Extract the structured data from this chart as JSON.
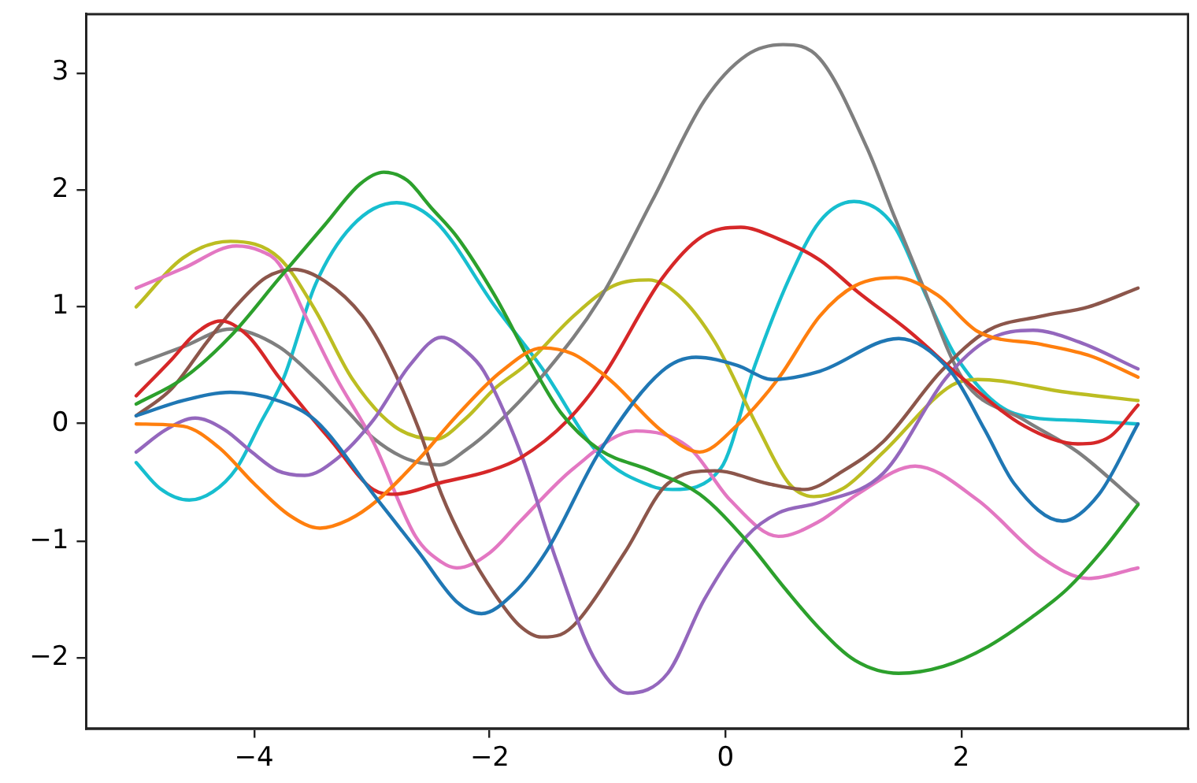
{
  "chart_data": {
    "type": "line",
    "marker": "none",
    "line_style": "solid",
    "xlim": [
      -5.425,
      3.925
    ],
    "ylim": [
      -2.6,
      3.5
    ],
    "xticks": [
      {
        "value": -4,
        "label": "−4"
      },
      {
        "value": -2,
        "label": "−2"
      },
      0,
      2
    ],
    "yticks": [
      {
        "value": -2,
        "label": "−2"
      },
      {
        "value": -1,
        "label": "−1"
      },
      0,
      1,
      2,
      3
    ],
    "series": [
      {
        "color": "#1f77b4",
        "x": [
          -5,
          -4.6,
          -4.2,
          -3.8,
          -3.48,
          -2.95,
          -2.6,
          -2.28,
          -2.07,
          -1.8,
          -1.52,
          -1.07,
          -0.54,
          -0.25,
          0.1,
          0.4,
          0.8,
          1.47,
          1.91,
          2.2,
          2.45,
          2.86,
          3.17,
          3.5
        ],
        "values": [
          0.07,
          0.2,
          0.27,
          0.2,
          0.03,
          -0.65,
          -1.1,
          -1.52,
          -1.62,
          -1.45,
          -1.09,
          -0.24,
          0.45,
          0.57,
          0.5,
          0.38,
          0.45,
          0.73,
          0.45,
          -0.05,
          -0.51,
          -0.83,
          -0.6,
          0.0
        ]
      },
      {
        "color": "#ff7f0e",
        "x": [
          -5,
          -4.6,
          -4.3,
          -4.0,
          -3.7,
          -3.44,
          -3.2,
          -2.95,
          -2.6,
          -2.28,
          -1.9,
          -1.55,
          -1.3,
          -1.07,
          -0.94,
          -0.54,
          -0.22,
          0.09,
          0.45,
          0.8,
          1.1,
          1.45,
          1.8,
          2.14,
          2.68,
          3.1,
          3.5
        ],
        "values": [
          0.0,
          -0.02,
          -0.2,
          -0.51,
          -0.78,
          -0.89,
          -0.82,
          -0.65,
          -0.3,
          0.07,
          0.45,
          0.65,
          0.6,
          0.45,
          0.34,
          -0.06,
          -0.24,
          -0.02,
          0.39,
          0.92,
          1.18,
          1.25,
          1.1,
          0.79,
          0.68,
          0.58,
          0.4
        ]
      },
      {
        "color": "#2ca02c",
        "x": [
          -5,
          -4.6,
          -4.2,
          -3.79,
          -3.4,
          -3.1,
          -2.9,
          -2.7,
          -2.5,
          -2.28,
          -1.96,
          -1.65,
          -1.4,
          -1.07,
          -0.63,
          -0.22,
          0.18,
          0.5,
          0.8,
          1.1,
          1.47,
          1.85,
          2.23,
          2.6,
          2.9,
          3.2,
          3.5
        ],
        "values": [
          0.17,
          0.39,
          0.75,
          1.24,
          1.7,
          2.05,
          2.15,
          2.08,
          1.85,
          1.6,
          1.1,
          0.52,
          0.1,
          -0.22,
          -0.4,
          -0.6,
          -1.0,
          -1.4,
          -1.75,
          -2.02,
          -2.13,
          -2.07,
          -1.9,
          -1.65,
          -1.41,
          -1.08,
          -0.69
        ]
      },
      {
        "color": "#d62728",
        "x": [
          -5,
          -4.7,
          -4.5,
          -4.28,
          -4.05,
          -3.79,
          -3.55,
          -3.34,
          -2.99,
          -2.81,
          -2.41,
          -2.0,
          -1.74,
          -1.34,
          -1.03,
          -0.54,
          -0.2,
          0.13,
          0.45,
          0.8,
          1.12,
          1.56,
          2.01,
          2.54,
          2.99,
          3.26,
          3.5
        ],
        "values": [
          0.24,
          0.55,
          0.77,
          0.88,
          0.75,
          0.4,
          0.1,
          -0.15,
          -0.56,
          -0.6,
          -0.5,
          -0.4,
          -0.29,
          0.03,
          0.42,
          1.24,
          1.6,
          1.68,
          1.58,
          1.4,
          1.13,
          0.79,
          0.39,
          -0.02,
          -0.17,
          -0.11,
          0.16
        ]
      },
      {
        "color": "#9467bd",
        "x": [
          -5,
          -4.75,
          -4.5,
          -4.25,
          -4.02,
          -3.8,
          -3.57,
          -3.3,
          -2.99,
          -2.68,
          -2.41,
          -2.2,
          -2.05,
          -1.74,
          -1.43,
          -1.12,
          -0.83,
          -0.49,
          -0.18,
          0.18,
          0.45,
          0.8,
          1.34,
          1.87,
          2.23,
          2.61,
          3.0,
          3.5
        ],
        "values": [
          -0.24,
          -0.05,
          0.05,
          -0.05,
          -0.24,
          -0.4,
          -0.44,
          -0.3,
          0.03,
          0.5,
          0.74,
          0.62,
          0.45,
          -0.24,
          -1.18,
          -1.99,
          -2.3,
          -2.13,
          -1.5,
          -0.96,
          -0.76,
          -0.67,
          -0.42,
          0.39,
          0.72,
          0.8,
          0.7,
          0.47
        ]
      },
      {
        "color": "#8c564b",
        "x": [
          -5,
          -4.7,
          -4.4,
          -4.15,
          -3.9,
          -3.66,
          -3.4,
          -3.08,
          -2.86,
          -2.6,
          -2.41,
          -2.2,
          -1.96,
          -1.75,
          -1.56,
          -1.4,
          -1.25,
          -0.85,
          -0.49,
          -0.09,
          0.36,
          0.67,
          1.0,
          1.34,
          1.83,
          2.23,
          2.68,
          3.08,
          3.5
        ],
        "values": [
          0.07,
          0.3,
          0.7,
          1.01,
          1.25,
          1.32,
          1.22,
          0.92,
          0.55,
          -0.05,
          -0.6,
          -1.05,
          -1.45,
          -1.72,
          -1.82,
          -1.8,
          -1.68,
          -1.09,
          -0.51,
          -0.4,
          -0.51,
          -0.56,
          -0.4,
          -0.15,
          0.45,
          0.8,
          0.92,
          1.0,
          1.16
        ]
      },
      {
        "color": "#e377c2",
        "x": [
          -5,
          -4.6,
          -4.15,
          -3.95,
          -3.79,
          -3.52,
          -3.3,
          -2.99,
          -2.63,
          -2.41,
          -2.28,
          -2.0,
          -1.74,
          -1.29,
          -0.76,
          -0.31,
          0.04,
          0.45,
          0.8,
          1.12,
          1.61,
          2.14,
          2.68,
          3.08,
          3.5
        ],
        "values": [
          1.16,
          1.33,
          1.52,
          1.48,
          1.37,
          0.83,
          0.39,
          -0.15,
          -0.96,
          -1.18,
          -1.23,
          -1.1,
          -0.83,
          -0.38,
          -0.06,
          -0.2,
          -0.65,
          -0.96,
          -0.83,
          -0.6,
          -0.36,
          -0.65,
          -1.14,
          -1.32,
          -1.23
        ]
      },
      {
        "color": "#7f7f7f",
        "x": [
          -5,
          -4.6,
          -4.2,
          -3.79,
          -3.48,
          -3.2,
          -2.99,
          -2.7,
          -2.43,
          -2.2,
          -1.96,
          -1.52,
          -1.07,
          -0.62,
          -0.18,
          0.18,
          0.49,
          0.8,
          1.2,
          1.43,
          1.65,
          2.01,
          2.54,
          2.99,
          3.5
        ],
        "values": [
          0.51,
          0.66,
          0.81,
          0.66,
          0.39,
          0.1,
          -0.12,
          -0.3,
          -0.35,
          -0.22,
          -0.02,
          0.45,
          1.06,
          1.91,
          2.76,
          3.15,
          3.24,
          3.12,
          2.36,
          1.78,
          1.24,
          0.39,
          0.03,
          -0.24,
          -0.68
        ]
      },
      {
        "color": "#bcbd22",
        "x": [
          -5,
          -4.6,
          -4.2,
          -3.79,
          -3.48,
          -3.17,
          -2.81,
          -2.46,
          -2.2,
          -1.96,
          -1.7,
          -1.29,
          -0.95,
          -0.65,
          -0.4,
          -0.09,
          0.27,
          0.54,
          0.75,
          1.0,
          1.34,
          1.92,
          2.14,
          2.9,
          3.5
        ],
        "values": [
          1.0,
          1.42,
          1.56,
          1.42,
          0.97,
          0.39,
          -0.02,
          -0.13,
          0.05,
          0.3,
          0.5,
          0.92,
          1.18,
          1.23,
          1.1,
          0.7,
          -0.02,
          -0.51,
          -0.62,
          -0.55,
          -0.24,
          0.33,
          0.38,
          0.27,
          0.2
        ]
      },
      {
        "color": "#17becf",
        "x": [
          -5,
          -4.8,
          -4.55,
          -4.35,
          -4.15,
          -3.95,
          -3.75,
          -3.48,
          -3.17,
          -2.79,
          -2.46,
          -1.96,
          -1.56,
          -1.07,
          -0.63,
          -0.45,
          -0.04,
          0.25,
          0.54,
          0.8,
          1.09,
          1.43,
          1.7,
          1.96,
          2.45,
          2.99,
          3.5
        ],
        "values": [
          -0.33,
          -0.55,
          -0.65,
          -0.58,
          -0.38,
          0.0,
          0.39,
          1.19,
          1.69,
          1.89,
          1.73,
          1.01,
          0.48,
          -0.26,
          -0.53,
          -0.56,
          -0.38,
          0.5,
          1.24,
          1.73,
          1.9,
          1.69,
          1.1,
          0.57,
          0.09,
          0.03,
          0.0
        ]
      }
    ]
  }
}
